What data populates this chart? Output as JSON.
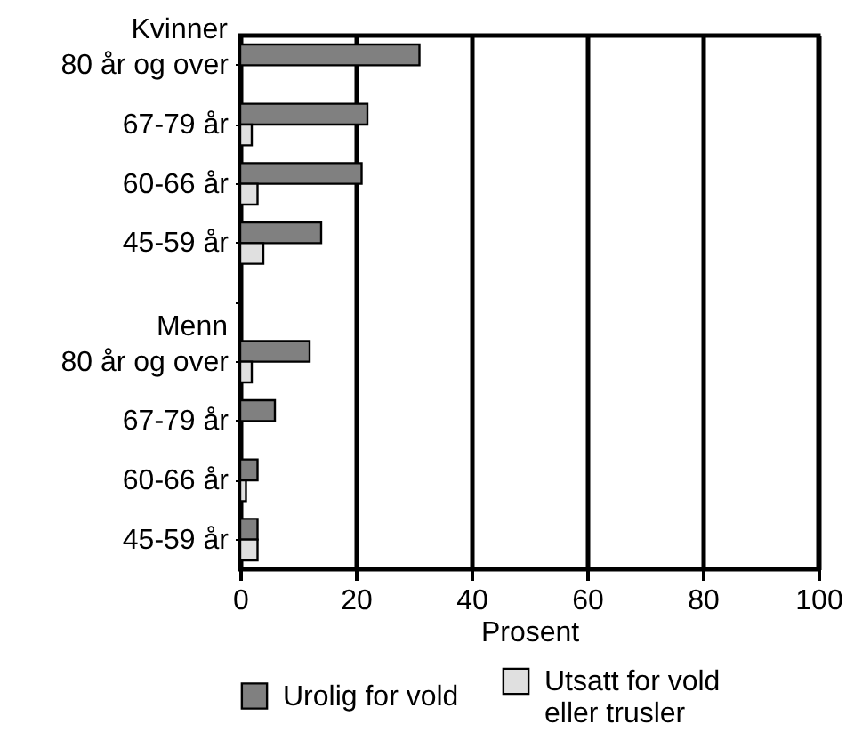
{
  "chart_data": {
    "type": "bar",
    "orientation": "horizontal",
    "xlabel": "Prosent",
    "categories": [
      "80 år og over",
      "67-79 år",
      "60-66 år",
      "45-59 år",
      null,
      "80 år og over",
      "67-79 år",
      "60-66 år",
      "45-59 år"
    ],
    "annotations": [
      "Kvinner",
      "Menn"
    ],
    "series": [
      {
        "name": "Urolig for vold",
        "color": "#808080",
        "values": [
          31,
          22,
          21,
          14,
          null,
          12,
          6,
          3,
          3
        ]
      },
      {
        "name": "Utsatt for vold eller trusler",
        "color": "#e0e0e0",
        "values": [
          null,
          2,
          3,
          4,
          null,
          2,
          null,
          1,
          3
        ]
      }
    ],
    "xlim": [
      0,
      100
    ],
    "xticks": [
      0,
      20,
      40,
      60,
      80,
      100
    ],
    "grid": "x",
    "legend": "bottom"
  }
}
